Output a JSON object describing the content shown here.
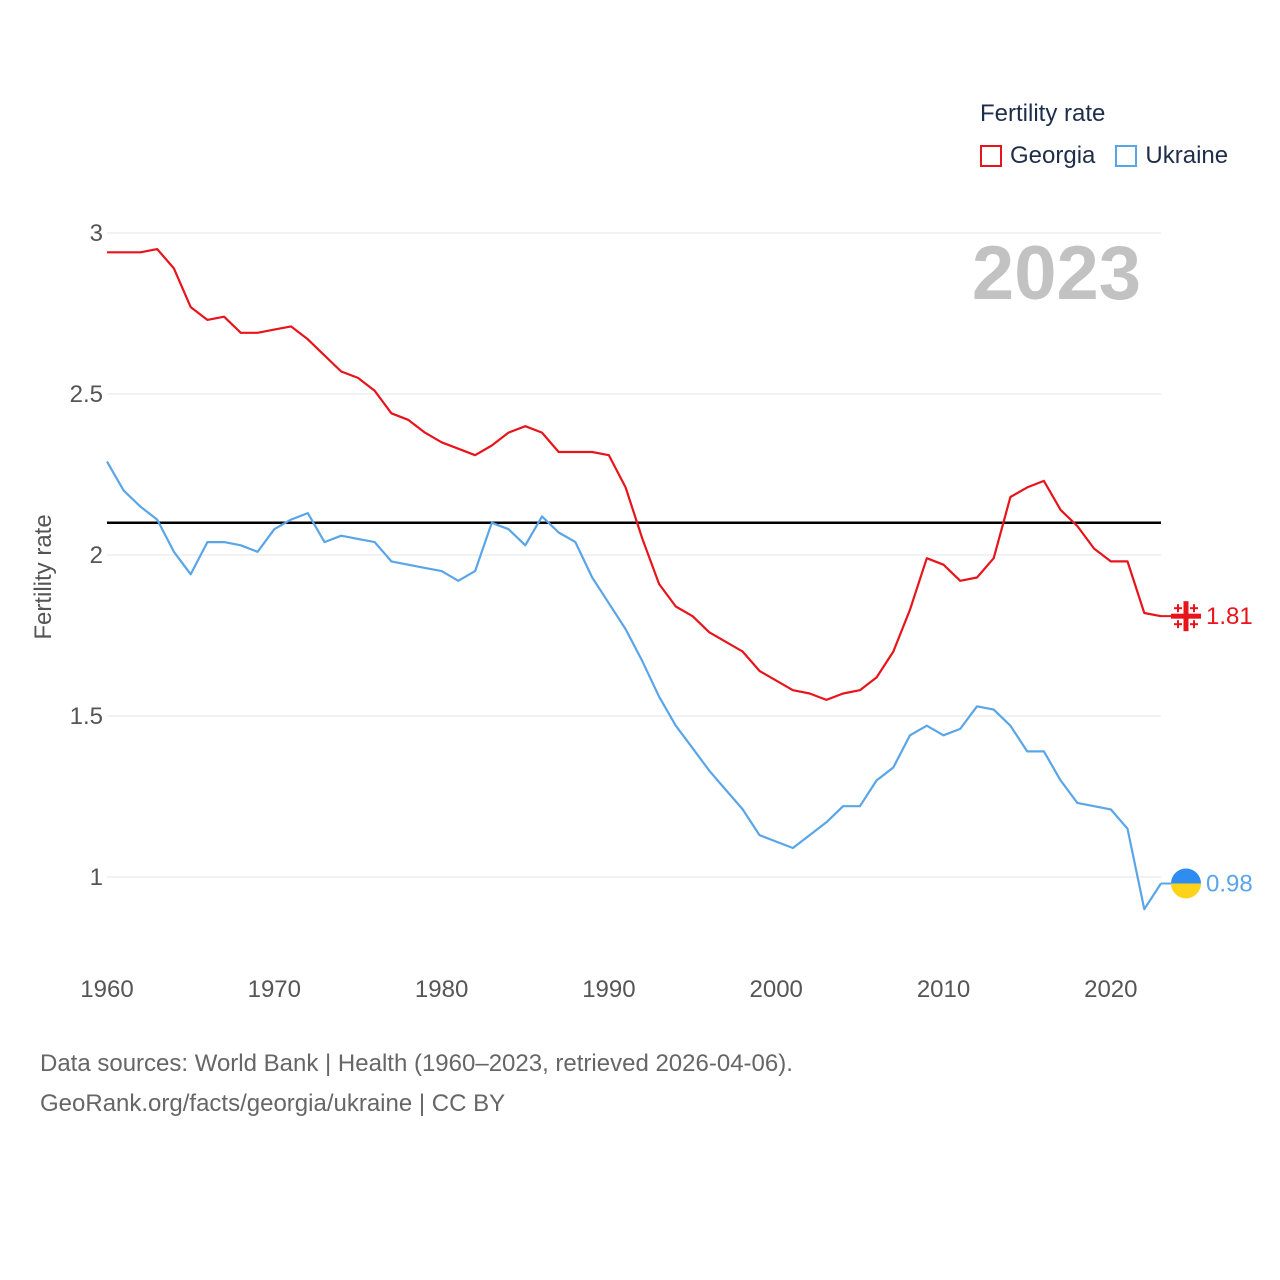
{
  "legend": {
    "title": "Fertility rate",
    "items": [
      {
        "label": "Georgia",
        "color": "#e8141c"
      },
      {
        "label": "Ukraine",
        "color": "#5aa5e8"
      }
    ]
  },
  "footer": {
    "line1": "Data sources: World Bank | Health (1960–2023, retrieved 2026-04-06).",
    "line2": "GeoRank.org/facts/georgia/ukraine | CC BY"
  },
  "chart_data": {
    "type": "line",
    "title": "Fertility rate",
    "ylabel": "Fertility rate",
    "xlabel": "",
    "year_label": "2023",
    "x_ticks": [
      1960,
      1970,
      1980,
      1990,
      2000,
      2010,
      2020
    ],
    "y_ticks": [
      1,
      1.5,
      2,
      2.5,
      3
    ],
    "y_tick_labels": [
      "1",
      "1.5",
      "2",
      "2.5",
      "3"
    ],
    "ylim": [
      0.8,
      3.0
    ],
    "xlim": [
      1960,
      2023
    ],
    "reference_line": 2.1,
    "series": [
      {
        "name": "Georgia",
        "color": "#e8141c",
        "end_label": "1.81",
        "x": [
          1960,
          1961,
          1962,
          1963,
          1964,
          1965,
          1966,
          1967,
          1968,
          1969,
          1970,
          1971,
          1972,
          1973,
          1974,
          1975,
          1976,
          1977,
          1978,
          1979,
          1980,
          1981,
          1982,
          1983,
          1984,
          1985,
          1986,
          1987,
          1988,
          1989,
          1990,
          1991,
          1992,
          1993,
          1994,
          1995,
          1996,
          1997,
          1998,
          1999,
          2000,
          2001,
          2002,
          2003,
          2004,
          2005,
          2006,
          2007,
          2008,
          2009,
          2010,
          2011,
          2012,
          2013,
          2014,
          2015,
          2016,
          2017,
          2018,
          2019,
          2020,
          2021,
          2022,
          2023
        ],
        "values": [
          2.94,
          2.94,
          2.94,
          2.95,
          2.89,
          2.77,
          2.73,
          2.74,
          2.69,
          2.69,
          2.7,
          2.71,
          2.67,
          2.62,
          2.57,
          2.55,
          2.51,
          2.44,
          2.42,
          2.38,
          2.35,
          2.33,
          2.31,
          2.34,
          2.38,
          2.4,
          2.38,
          2.32,
          2.32,
          2.32,
          2.31,
          2.21,
          2.05,
          1.91,
          1.84,
          1.81,
          1.76,
          1.73,
          1.7,
          1.64,
          1.61,
          1.58,
          1.57,
          1.55,
          1.57,
          1.58,
          1.62,
          1.7,
          1.83,
          1.99,
          1.97,
          1.92,
          1.93,
          1.99,
          2.18,
          2.21,
          2.23,
          2.14,
          2.09,
          2.02,
          1.98,
          1.98,
          1.82,
          1.81
        ]
      },
      {
        "name": "Ukraine",
        "color": "#5aa5e8",
        "end_label": "0.98",
        "x": [
          1960,
          1961,
          1962,
          1963,
          1964,
          1965,
          1966,
          1967,
          1968,
          1969,
          1970,
          1971,
          1972,
          1973,
          1974,
          1975,
          1976,
          1977,
          1978,
          1979,
          1980,
          1981,
          1982,
          1983,
          1984,
          1985,
          1986,
          1987,
          1988,
          1989,
          1990,
          1991,
          1992,
          1993,
          1994,
          1995,
          1996,
          1997,
          1998,
          1999,
          2000,
          2001,
          2002,
          2003,
          2004,
          2005,
          2006,
          2007,
          2008,
          2009,
          2010,
          2011,
          2012,
          2013,
          2014,
          2015,
          2016,
          2017,
          2018,
          2019,
          2020,
          2021,
          2022,
          2023
        ],
        "values": [
          2.29,
          2.2,
          2.15,
          2.11,
          2.01,
          1.94,
          2.04,
          2.04,
          2.03,
          2.01,
          2.08,
          2.11,
          2.13,
          2.04,
          2.06,
          2.05,
          2.04,
          1.98,
          1.97,
          1.96,
          1.95,
          1.92,
          1.95,
          2.1,
          2.08,
          2.03,
          2.12,
          2.07,
          2.04,
          1.93,
          1.85,
          1.77,
          1.67,
          1.56,
          1.47,
          1.4,
          1.33,
          1.27,
          1.21,
          1.13,
          1.11,
          1.09,
          1.13,
          1.17,
          1.22,
          1.22,
          1.3,
          1.34,
          1.44,
          1.47,
          1.44,
          1.46,
          1.53,
          1.52,
          1.47,
          1.39,
          1.39,
          1.3,
          1.23,
          1.22,
          1.21,
          1.15,
          0.9,
          0.98
        ]
      }
    ]
  }
}
